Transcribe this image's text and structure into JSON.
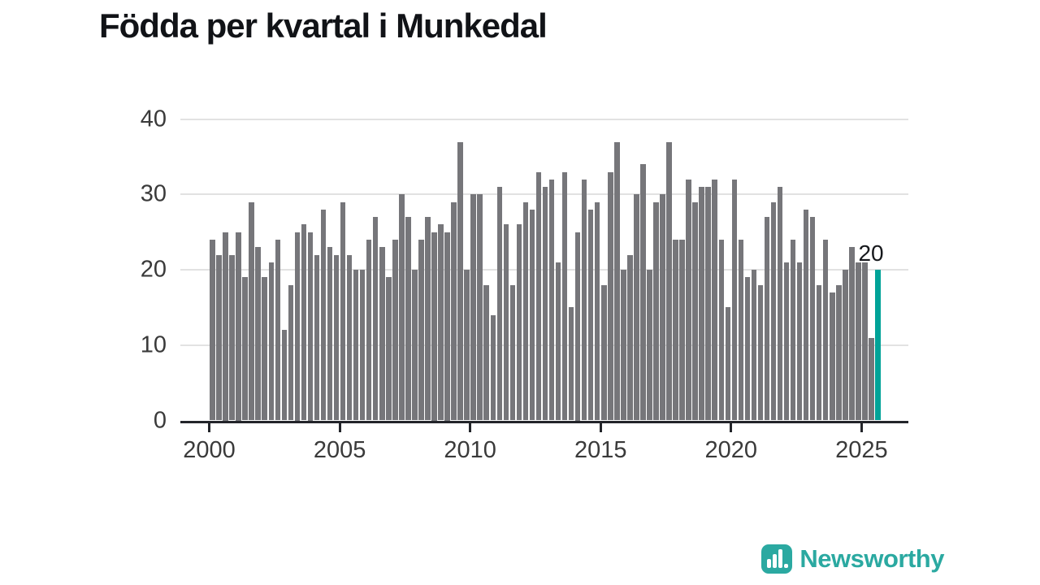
{
  "title": "Födda per kvartal i Munkedal",
  "colors": {
    "bar": "#76767a",
    "highlight": "#00a398",
    "axis": "#23252a",
    "grid": "#e2e2e2",
    "tick_text": "#3a3a3a",
    "title_text": "#111317",
    "logo_teal": "#2ba9a1"
  },
  "chart_data": {
    "type": "bar",
    "title": "Födda per kvartal i Munkedal",
    "xlabel": "",
    "ylabel": "",
    "ylim": [
      0,
      40
    ],
    "y_ticks": [
      0,
      10,
      20,
      30,
      40
    ],
    "x_tick_labels": [
      "2000",
      "2005",
      "2010",
      "2015",
      "2020",
      "2025"
    ],
    "grid": true,
    "legend": "none",
    "start_year": 2000,
    "start_quarter": 1,
    "unit": "births per quarter",
    "values": [
      24,
      22,
      25,
      22,
      25,
      19,
      29,
      23,
      19,
      21,
      24,
      12,
      18,
      25,
      26,
      25,
      22,
      28,
      23,
      22,
      29,
      22,
      20,
      20,
      24,
      27,
      23,
      19,
      24,
      30,
      27,
      20,
      24,
      27,
      25,
      26,
      25,
      29,
      37,
      20,
      30,
      30,
      18,
      14,
      31,
      26,
      18,
      26,
      29,
      28,
      33,
      31,
      32,
      21,
      33,
      15,
      25,
      32,
      28,
      29,
      18,
      33,
      37,
      20,
      22,
      30,
      34,
      20,
      29,
      30,
      37,
      24,
      24,
      32,
      29,
      31,
      31,
      32,
      24,
      15,
      32,
      24,
      19,
      20,
      18,
      27,
      29,
      31,
      21,
      24,
      21,
      28,
      27,
      18,
      24,
      17,
      18,
      20,
      23,
      21,
      21,
      11,
      20
    ],
    "highlight_last": true,
    "annotation": {
      "text": "20",
      "target_index": 102
    }
  },
  "logo": {
    "text": "Newsworthy",
    "icon": "bar-chart-icon"
  }
}
